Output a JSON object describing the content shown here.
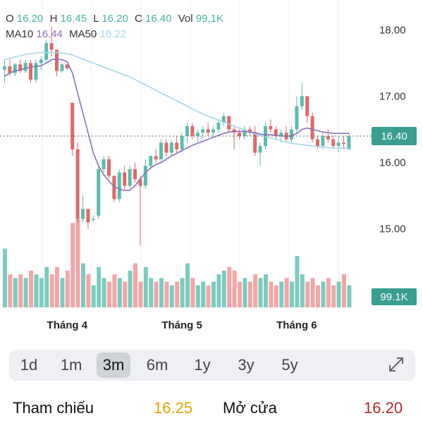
{
  "ohlc": {
    "o_label": "O",
    "o": "16.20",
    "h_label": "H",
    "h": "16.45",
    "l_label": "L",
    "l": "16.20",
    "c_label": "C",
    "c": "16.40",
    "vol_label": "Vol",
    "vol": "99,1K"
  },
  "ma": {
    "ma10_label": "MA10",
    "ma10": "16.44",
    "ma50_label": "MA50",
    "ma50": "16.22"
  },
  "current_price_tag": "16.40",
  "current_volume_tag": "99.1K",
  "colors": {
    "up": "#5cbcae",
    "down": "#e0686a",
    "up_vol": "#7ccbbf",
    "down_vol": "#f2a6a6",
    "ma10": "#8b71b8",
    "ma50": "#a8d7ea",
    "price_tag": "#3a9e91"
  },
  "range_buttons": [
    {
      "label": "1d"
    },
    {
      "label": "1m"
    },
    {
      "label": "3m",
      "active": true
    },
    {
      "label": "6m"
    },
    {
      "label": "1y"
    },
    {
      "label": "3y"
    },
    {
      "label": "5y"
    }
  ],
  "footer": {
    "ref_label": "Tham chiếu",
    "ref_value": "16.25",
    "open_label": "Mở cửa",
    "open_value": "16.20",
    "ref_color": "#d9a800",
    "open_color": "#b5282b"
  },
  "chart_data": {
    "type": "candlestick",
    "y_ticks": [
      "18.00",
      "17.00",
      "16.00",
      "15.00",
      "14.00"
    ],
    "ylim": [
      13.35,
      18.45
    ],
    "x_labels": [
      {
        "label": "Tháng 4",
        "index": 12
      },
      {
        "label": "Tháng 5",
        "index": 34
      },
      {
        "label": "Tháng 6",
        "index": 56
      }
    ],
    "candles": [
      [
        17.4,
        17.55,
        17.2,
        17.45,
        80
      ],
      [
        17.45,
        17.55,
        17.3,
        17.35,
        45
      ],
      [
        17.35,
        17.5,
        17.3,
        17.48,
        40
      ],
      [
        17.48,
        17.55,
        17.35,
        17.38,
        45
      ],
      [
        17.38,
        17.55,
        17.35,
        17.5,
        40
      ],
      [
        17.5,
        17.55,
        17.2,
        17.25,
        50
      ],
      [
        17.25,
        17.55,
        17.2,
        17.5,
        45
      ],
      [
        17.5,
        17.6,
        17.4,
        17.55,
        40
      ],
      [
        17.55,
        17.85,
        17.5,
        17.8,
        55
      ],
      [
        17.8,
        18.05,
        17.6,
        17.7,
        45
      ],
      [
        17.7,
        17.7,
        17.3,
        17.38,
        55
      ],
      [
        17.38,
        17.5,
        17.35,
        17.48,
        40
      ],
      [
        17.48,
        17.48,
        17.4,
        17.42,
        50
      ],
      [
        16.9,
        16.9,
        16.1,
        16.2,
        115
      ],
      [
        16.2,
        16.3,
        15.1,
        15.15,
        120
      ],
      [
        15.15,
        15.5,
        15.1,
        15.3,
        60
      ],
      [
        15.3,
        15.3,
        15.0,
        15.1,
        45
      ],
      [
        15.15,
        15.2,
        15.1,
        15.15,
        30
      ],
      [
        15.2,
        15.95,
        15.15,
        15.9,
        55
      ],
      [
        15.9,
        16.1,
        15.85,
        16.05,
        40
      ],
      [
        16.05,
        16.1,
        15.75,
        15.8,
        35
      ],
      [
        15.8,
        15.8,
        15.4,
        15.45,
        45
      ],
      [
        15.45,
        15.9,
        15.4,
        15.85,
        40
      ],
      [
        15.85,
        15.95,
        15.6,
        15.65,
        35
      ],
      [
        15.65,
        15.95,
        15.6,
        15.9,
        50
      ],
      [
        15.9,
        16.0,
        15.7,
        15.75,
        60
      ],
      [
        15.75,
        15.8,
        14.75,
        15.65,
        35
      ],
      [
        15.65,
        16.05,
        15.6,
        15.95,
        55
      ],
      [
        15.95,
        16.1,
        15.9,
        16.1,
        40
      ],
      [
        16.1,
        16.2,
        16.0,
        16.05,
        35
      ],
      [
        16.05,
        16.35,
        16.0,
        16.3,
        40
      ],
      [
        16.3,
        16.35,
        16.1,
        16.15,
        35
      ],
      [
        16.15,
        16.35,
        16.1,
        16.3,
        30
      ],
      [
        16.3,
        16.4,
        16.15,
        16.2,
        35
      ],
      [
        16.2,
        16.45,
        16.15,
        16.4,
        40
      ],
      [
        16.4,
        16.6,
        16.3,
        16.55,
        60
      ],
      [
        16.55,
        16.6,
        16.35,
        16.4,
        40
      ],
      [
        16.4,
        16.5,
        16.3,
        16.45,
        30
      ],
      [
        16.45,
        16.55,
        16.35,
        16.5,
        35
      ],
      [
        16.5,
        16.6,
        16.4,
        16.45,
        30
      ],
      [
        16.45,
        16.55,
        16.4,
        16.5,
        35
      ],
      [
        16.5,
        16.65,
        16.45,
        16.6,
        45
      ],
      [
        16.6,
        16.75,
        16.55,
        16.7,
        50
      ],
      [
        16.7,
        16.7,
        16.45,
        16.5,
        55
      ],
      [
        16.5,
        16.55,
        16.2,
        16.45,
        50
      ],
      [
        16.45,
        16.5,
        16.35,
        16.4,
        35
      ],
      [
        16.4,
        16.55,
        16.35,
        16.5,
        40
      ],
      [
        16.5,
        16.55,
        16.4,
        16.45,
        35
      ],
      [
        16.45,
        16.55,
        16.1,
        16.15,
        45
      ],
      [
        16.15,
        16.3,
        15.95,
        16.25,
        40
      ],
      [
        16.25,
        16.6,
        16.2,
        16.55,
        45
      ],
      [
        16.55,
        16.65,
        16.45,
        16.5,
        35
      ],
      [
        16.5,
        16.55,
        16.35,
        16.4,
        30
      ],
      [
        16.4,
        16.5,
        16.3,
        16.45,
        35
      ],
      [
        16.45,
        16.55,
        16.3,
        16.35,
        40
      ],
      [
        16.35,
        16.55,
        16.3,
        16.5,
        35
      ],
      [
        16.5,
        17.0,
        16.45,
        16.85,
        70
      ],
      [
        16.85,
        17.2,
        16.8,
        17.0,
        45
      ],
      [
        17.0,
        17.0,
        16.6,
        16.7,
        35
      ],
      [
        16.7,
        16.75,
        16.3,
        16.35,
        40
      ],
      [
        16.35,
        16.4,
        16.2,
        16.25,
        30
      ],
      [
        16.25,
        16.45,
        16.2,
        16.4,
        35
      ],
      [
        16.4,
        16.5,
        16.3,
        16.35,
        40
      ],
      [
        16.35,
        16.4,
        16.2,
        16.25,
        30
      ],
      [
        16.25,
        16.4,
        16.15,
        16.3,
        35
      ],
      [
        16.3,
        16.4,
        16.2,
        16.28,
        45
      ],
      [
        16.2,
        16.45,
        16.2,
        16.4,
        30
      ]
    ],
    "ma10": [
      17.3,
      17.35,
      17.38,
      17.4,
      17.42,
      17.44,
      17.45,
      17.46,
      17.5,
      17.55,
      17.56,
      17.55,
      17.52,
      17.35,
      17.05,
      16.75,
      16.45,
      16.15,
      15.95,
      15.82,
      15.72,
      15.64,
      15.6,
      15.58,
      15.58,
      15.65,
      15.75,
      15.85,
      15.92,
      15.97,
      16.0,
      16.05,
      16.1,
      16.14,
      16.18,
      16.22,
      16.26,
      16.29,
      16.32,
      16.35,
      16.38,
      16.41,
      16.44,
      16.46,
      16.47,
      16.47,
      16.47,
      16.46,
      16.45,
      16.43,
      16.42,
      16.42,
      16.41,
      16.4,
      16.4,
      16.4,
      16.44,
      16.5,
      16.52,
      16.5,
      16.48,
      16.46,
      16.45,
      16.44,
      16.44,
      16.44,
      16.44
    ],
    "ma50": [
      17.55,
      17.57,
      17.59,
      17.61,
      17.63,
      17.64,
      17.65,
      17.66,
      17.66,
      17.66,
      17.66,
      17.65,
      17.64,
      17.62,
      17.59,
      17.56,
      17.53,
      17.5,
      17.47,
      17.44,
      17.41,
      17.38,
      17.35,
      17.32,
      17.29,
      17.25,
      17.21,
      17.17,
      17.13,
      17.09,
      17.05,
      17.01,
      16.97,
      16.93,
      16.89,
      16.85,
      16.81,
      16.77,
      16.73,
      16.7,
      16.67,
      16.64,
      16.61,
      16.58,
      16.55,
      16.52,
      16.49,
      16.46,
      16.43,
      16.41,
      16.39,
      16.37,
      16.35,
      16.33,
      16.31,
      16.29,
      16.28,
      16.27,
      16.26,
      16.25,
      16.24,
      16.23,
      16.23,
      16.22,
      16.22,
      16.22,
      16.22
    ],
    "vol_max": 120
  }
}
